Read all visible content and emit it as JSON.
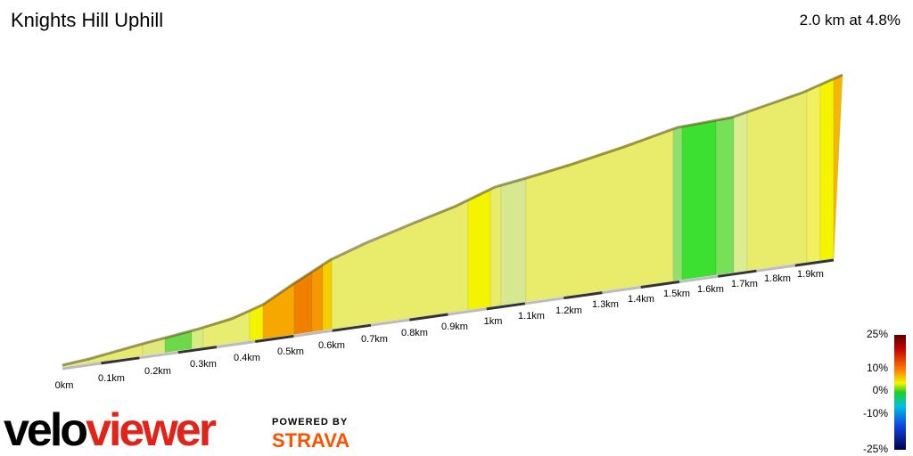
{
  "header": {
    "title": "Knights Hill Uphill",
    "summary": "2.0 km at 4.8%"
  },
  "distance_labels": [
    "0km",
    "0.1km",
    "0.2km",
    "0.3km",
    "0.4km",
    "0.5km",
    "0.6km",
    "0.7km",
    "0.8km",
    "0.9km",
    "1km",
    "1.1km",
    "1.2km",
    "1.3km",
    "1.4km",
    "1.5km",
    "1.6km",
    "1.7km",
    "1.8km",
    "1.9km"
  ],
  "legend": {
    "labels": [
      "25%",
      "10%",
      "0%",
      "-10%",
      "-25%"
    ]
  },
  "branding": {
    "logo_a": "velo",
    "logo_b": "viewer",
    "powered_by": "POWERED BY",
    "strava": "STRAVA"
  }
}
